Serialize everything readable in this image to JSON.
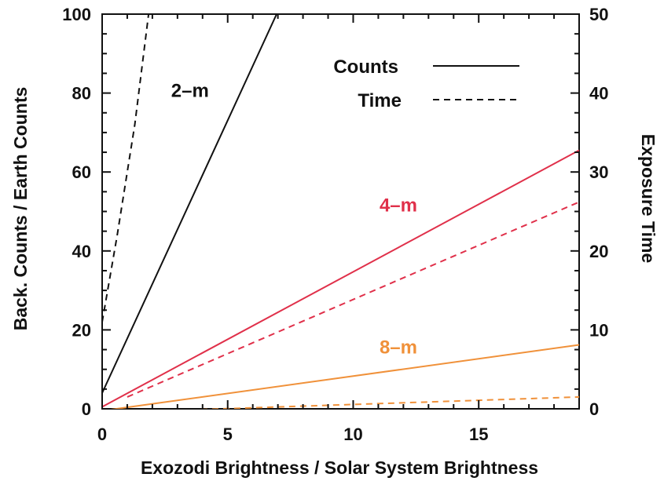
{
  "chart_data": {
    "type": "line",
    "xlabel": "Exozodi Brightness / Solar System Brightness",
    "ylabel_left": "Back. Counts / Earth Counts",
    "ylabel_right": "Exposure Time",
    "xlim": [
      0,
      19
    ],
    "ylim_left": [
      0,
      100
    ],
    "ylim_right": [
      0,
      50
    ],
    "x_ticks": [
      0,
      5,
      10,
      15
    ],
    "x_tick_labels": [
      "0",
      "5",
      "10",
      "15"
    ],
    "y_left_ticks": [
      0,
      20,
      40,
      60,
      80,
      100
    ],
    "y_left_tick_labels": [
      "0",
      "20",
      "40",
      "60",
      "80",
      "100"
    ],
    "y_right_ticks": [
      0,
      10,
      20,
      30,
      40,
      50
    ],
    "y_right_tick_labels": [
      "0",
      "10",
      "20",
      "30",
      "40",
      "50"
    ],
    "grid": false,
    "legend": {
      "placement": "top-right",
      "entries": [
        {
          "label": "Counts",
          "style": "solid"
        },
        {
          "label": "Time",
          "style": "dashed"
        }
      ]
    },
    "series": [
      {
        "label": "2–m",
        "color": "#111111",
        "quantity": "counts",
        "axis": "left",
        "style": "solid",
        "x": [
          0,
          6.95
        ],
        "y": [
          4,
          100
        ]
      },
      {
        "label": "2–m",
        "color": "#111111",
        "quantity": "time",
        "axis": "right",
        "style": "dashed",
        "x": [
          0,
          0.6,
          1.3,
          1.85
        ],
        "y": [
          11,
          22,
          36,
          50
        ]
      },
      {
        "label": "4–m",
        "color": "#e0304a",
        "quantity": "counts",
        "axis": "left",
        "style": "solid",
        "x": [
          0,
          19
        ],
        "y": [
          0.5,
          65.5
        ]
      },
      {
        "label": "4–m",
        "color": "#e0304a",
        "quantity": "time",
        "axis": "right",
        "style": "dashed",
        "x": [
          1,
          19
        ],
        "y": [
          1.5,
          26.2
        ]
      },
      {
        "label": "8–m",
        "color": "#f0913a",
        "quantity": "counts",
        "axis": "left",
        "style": "solid",
        "x": [
          0,
          19
        ],
        "y": [
          -0.5,
          16.2
        ]
      },
      {
        "label": "8–m",
        "color": "#f0913a",
        "quantity": "time",
        "axis": "right",
        "style": "dashed",
        "x": [
          0,
          19
        ],
        "y": [
          -0.5,
          1.5
        ]
      }
    ],
    "annotations": [
      {
        "text": "2–m",
        "color": "#111111",
        "x": 3.5,
        "y": 79
      },
      {
        "text": "4–m",
        "color": "#e0304a",
        "x": 11.8,
        "y": 50
      },
      {
        "text": "8–m",
        "color": "#f0913a",
        "x": 11.8,
        "y": 14
      }
    ]
  }
}
